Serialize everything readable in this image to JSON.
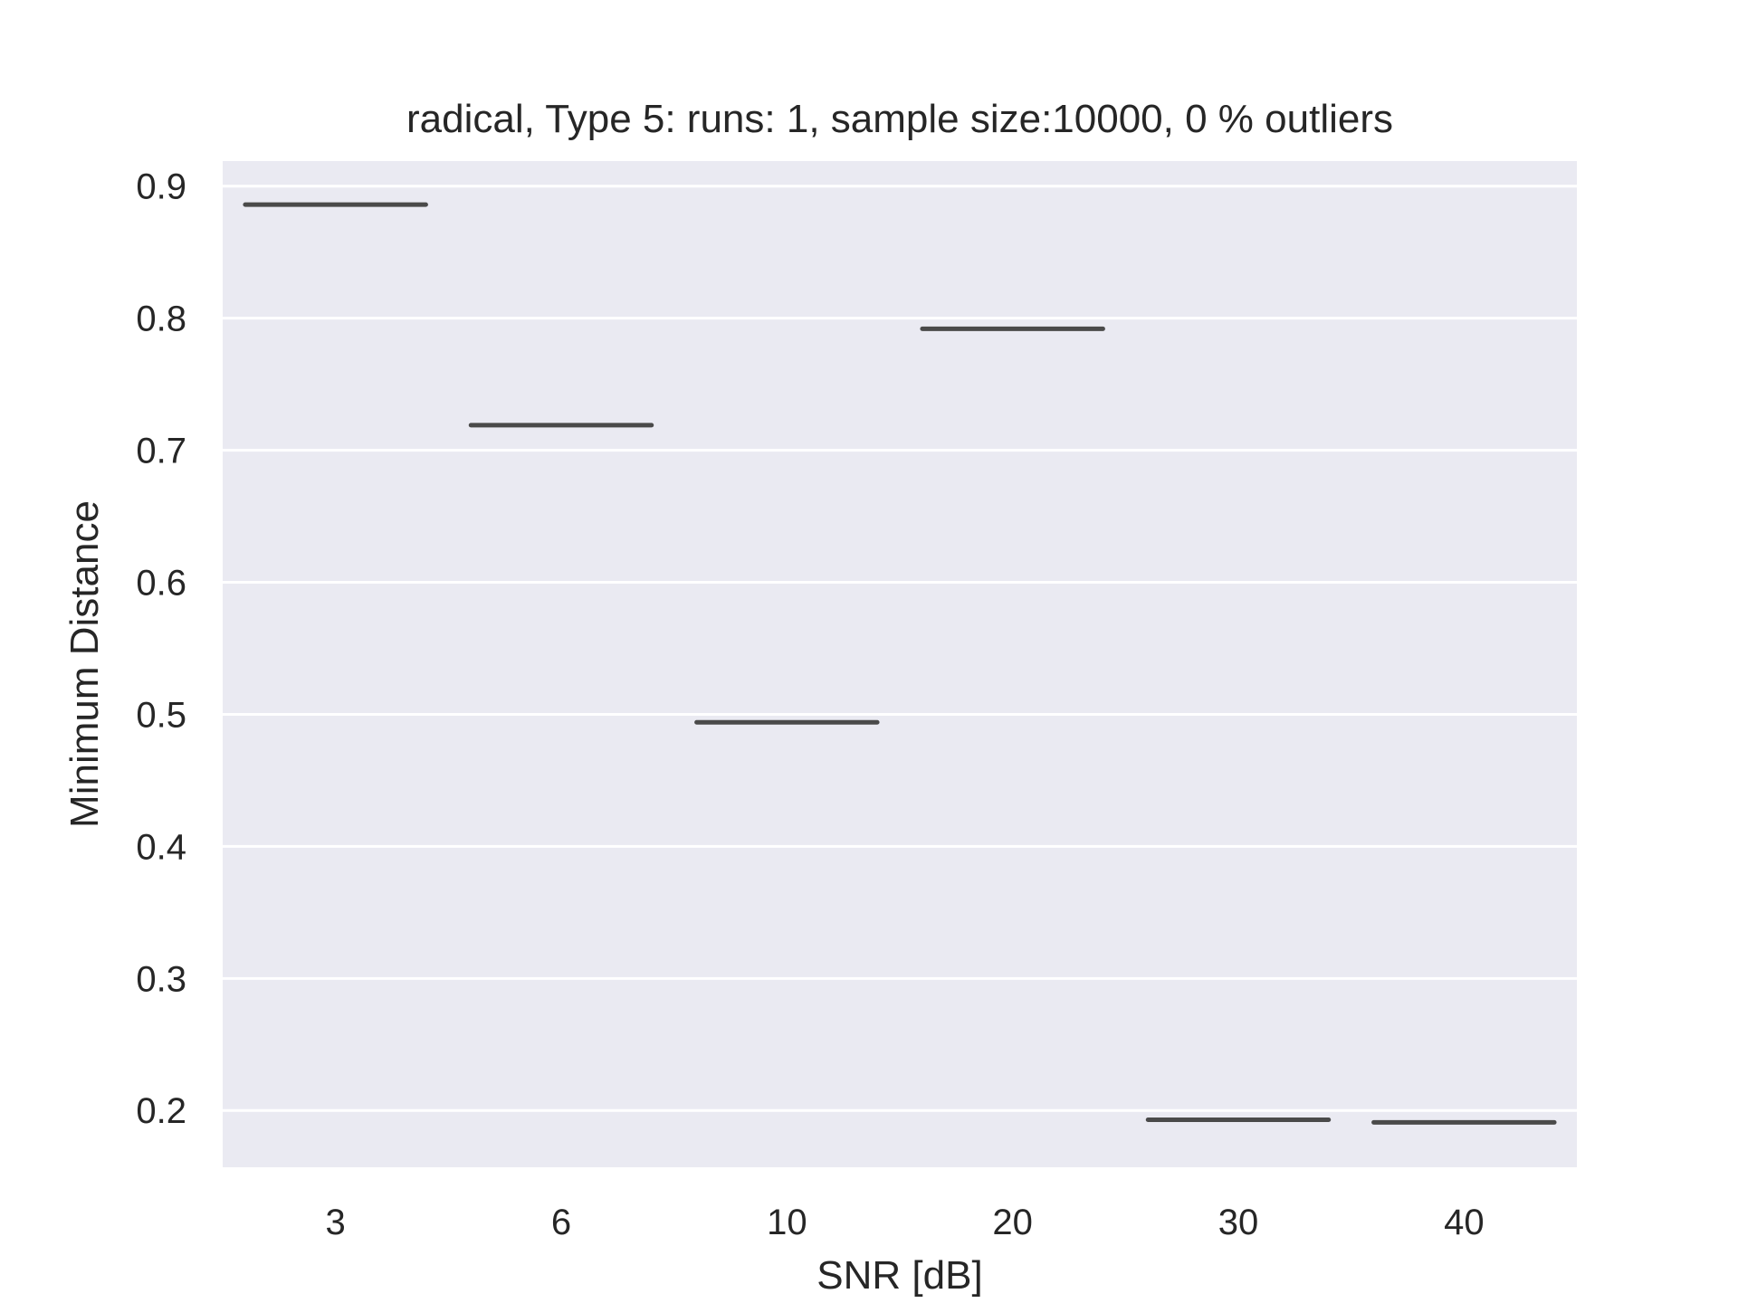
{
  "chart_data": {
    "type": "box",
    "title": "radical,  Type 5:  runs: 1, sample size:10000, 0 % outliers",
    "xlabel": "SNR [dB]",
    "ylabel": "Minimum Distance",
    "categories": [
      "3",
      "6",
      "10",
      "20",
      "30",
      "40"
    ],
    "values": [
      0.886,
      0.719,
      0.494,
      0.792,
      0.193,
      0.191
    ],
    "ylim": [
      0.157,
      0.919
    ],
    "yticks": [
      "0.2",
      "0.3",
      "0.4",
      "0.5",
      "0.6",
      "0.7",
      "0.8",
      "0.9"
    ],
    "grid": true,
    "legend": "none"
  },
  "colors": {
    "plot_background": "#eaeaf2",
    "grid": "#ffffff",
    "median_line": "#4a4a4a",
    "text": "#262626"
  }
}
